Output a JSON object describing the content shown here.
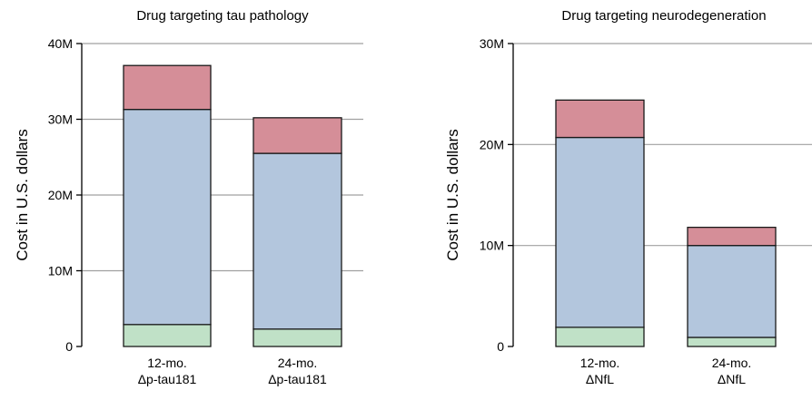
{
  "colors": {
    "segment_1": "#c0e1c7",
    "segment_2": "#b3c6dd",
    "segment_3": "#d58e98",
    "bar_edge": "#1a1a1a",
    "grid": "#a0a0a0"
  },
  "chart_data": [
    {
      "type": "bar",
      "stacked": true,
      "title": "Drug targeting tau pathology",
      "ylabel": "Cost in U.S. dollars",
      "xlabel": "",
      "ylim": [
        0,
        40000000
      ],
      "yticks": [
        0,
        10000000,
        20000000,
        30000000,
        40000000
      ],
      "ytick_labels": [
        "0",
        "10M",
        "20M",
        "30M",
        "40M"
      ],
      "grid": true,
      "categories": [
        [
          "12-mo.",
          "Δp-tau181"
        ],
        [
          "24-mo.",
          "Δp-tau181"
        ]
      ],
      "series": [
        {
          "values": [
            2900000,
            2300000
          ],
          "color": "#c0e1c7"
        },
        {
          "values": [
            28400000,
            23200000
          ],
          "color": "#b3c6dd"
        },
        {
          "values": [
            5800000,
            4700000
          ],
          "color": "#d58e98"
        }
      ]
    },
    {
      "type": "bar",
      "stacked": true,
      "title": "Drug targeting neurodegeneration",
      "ylabel": "Cost in U.S. dollars",
      "xlabel": "",
      "ylim": [
        0,
        30000000
      ],
      "yticks": [
        0,
        10000000,
        20000000,
        30000000
      ],
      "ytick_labels": [
        "0",
        "10M",
        "20M",
        "30M"
      ],
      "grid": true,
      "categories": [
        [
          "12-mo.",
          "ΔNfL"
        ],
        [
          "24-mo.",
          "ΔNfL"
        ]
      ],
      "series": [
        {
          "values": [
            1900000,
            900000
          ],
          "color": "#c0e1c7"
        },
        {
          "values": [
            18800000,
            9100000
          ],
          "color": "#b3c6dd"
        },
        {
          "values": [
            3700000,
            1800000
          ],
          "color": "#d58e98"
        }
      ]
    }
  ]
}
